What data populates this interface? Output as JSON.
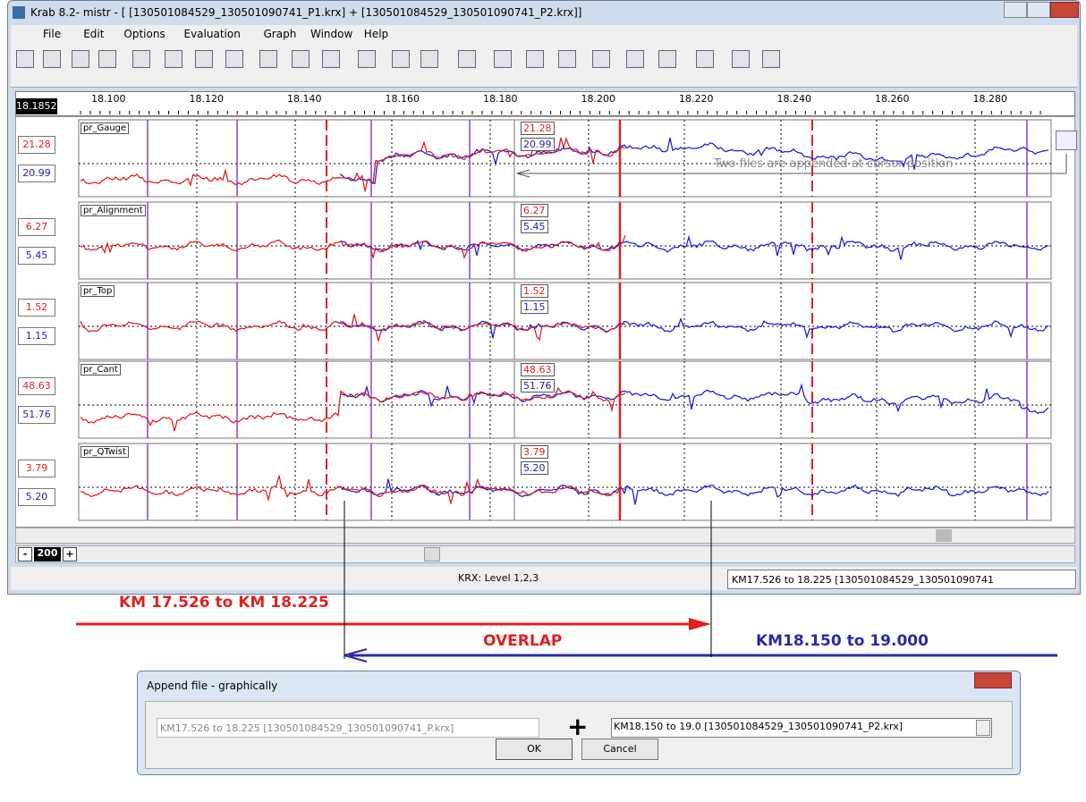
{
  "window": {
    "title": "Krab 8.2- mistr - [ [130501084529_130501090741_P1.krx] + [130501084529_130501090741_P2.krx]]",
    "menu": [
      "File",
      "Edit",
      "Options",
      "Evaluation",
      "Graph",
      "Window",
      "Help"
    ],
    "cursor_position": "18.185250",
    "ruler_labels": [
      "18.100",
      "18.120",
      "18.140",
      "18.160",
      "18.180",
      "18.200",
      "18.220",
      "18.240",
      "18.260",
      "18.280"
    ],
    "panels": [
      {
        "name": "pr_Gauge",
        "red": "21.28",
        "blue": "20.99"
      },
      {
        "name": "pr_Alignment",
        "red": "6.27",
        "blue": "5.45"
      },
      {
        "name": "pr_Top",
        "red": "1.52",
        "blue": "1.15"
      },
      {
        "name": "pr_Cant",
        "red": "48.63",
        "blue": "51.76"
      },
      {
        "name": "pr_QTwist",
        "red": "3.79",
        "blue": "5.20"
      }
    ],
    "callout": "Two files are appended at cursor position",
    "zoom_minus": "-",
    "zoom": "200",
    "zoom_plus": "+",
    "status_level": "KRX: Level 1,2,3",
    "status_file": "KM17.526 to 18.225 [130501084529_130501090741"
  },
  "annotations": {
    "red": "KM 17.526  to  KM 18.225",
    "overlap": "OVERLAP",
    "blue": "KM18.150 to 19.000"
  },
  "dialog": {
    "title": "Append file - graphically",
    "file1": "KM17.526 to 18.225 [130501084529_130501090741_P.krx]",
    "plus": "+",
    "file2": "KM18.150 to 19.0 [130501084529_130501090741_P2.krx]",
    "ok": "OK",
    "cancel": "Cancel"
  }
}
